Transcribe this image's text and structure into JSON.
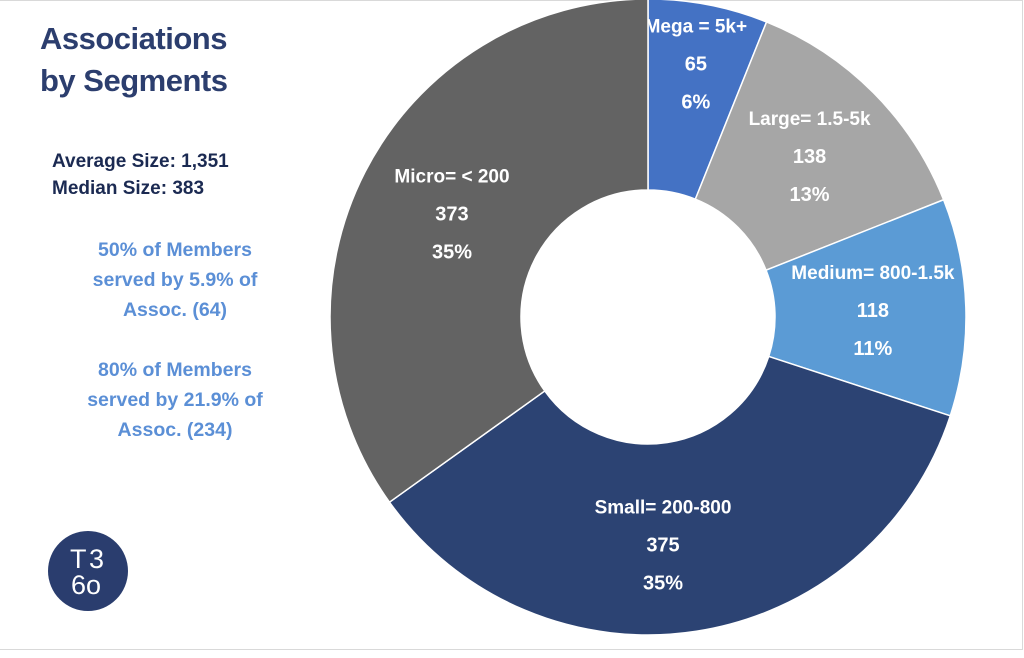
{
  "title_line1": "Associations",
  "title_line2": "by Segments",
  "stats": {
    "average": "Average Size: 1,351",
    "median": "Median Size: 383"
  },
  "notes": {
    "note1_line1": "50% of Members",
    "note1_line2": "served by 5.9% of",
    "note1_line3": "Assoc. (64)",
    "note2_line1": "80% of Members",
    "note2_line2": "served by 21.9% of",
    "note2_line3": "Assoc. (234)"
  },
  "logo": {
    "text_top_left": "T",
    "text_top_right": "3",
    "text_bottom": "6o"
  },
  "colors": {
    "mega": "#4472c4",
    "large": "#a6a6a6",
    "medium": "#5b9bd5",
    "small": "#2c4373",
    "micro": "#636363",
    "title": "#2c3e6e",
    "note": "#5b8fd6"
  },
  "chart_data": {
    "type": "pie",
    "variant": "donut",
    "start": "top, clockwise",
    "slices": [
      {
        "category": "Mega = 5k+",
        "value": 65,
        "percent_label": "6%",
        "color": "#4472c4",
        "label_color": "#ffffff"
      },
      {
        "category": "Large= 1.5-5k",
        "value": 138,
        "percent_label": "13%",
        "color": "#a6a6a6",
        "label_color": "#ffffff"
      },
      {
        "category": "Medium= 800-1.5k",
        "value": 118,
        "percent_label": "11%",
        "color": "#5b9bd5",
        "label_color": "#ffffff"
      },
      {
        "category": "Small= 200-800",
        "value": 375,
        "percent_label": "35%",
        "color": "#2c4373",
        "label_color": "#ffffff"
      },
      {
        "category": "Micro= < 200",
        "value": 373,
        "percent_label": "35%",
        "color": "#636363",
        "label_color": "#ffffff"
      }
    ]
  }
}
